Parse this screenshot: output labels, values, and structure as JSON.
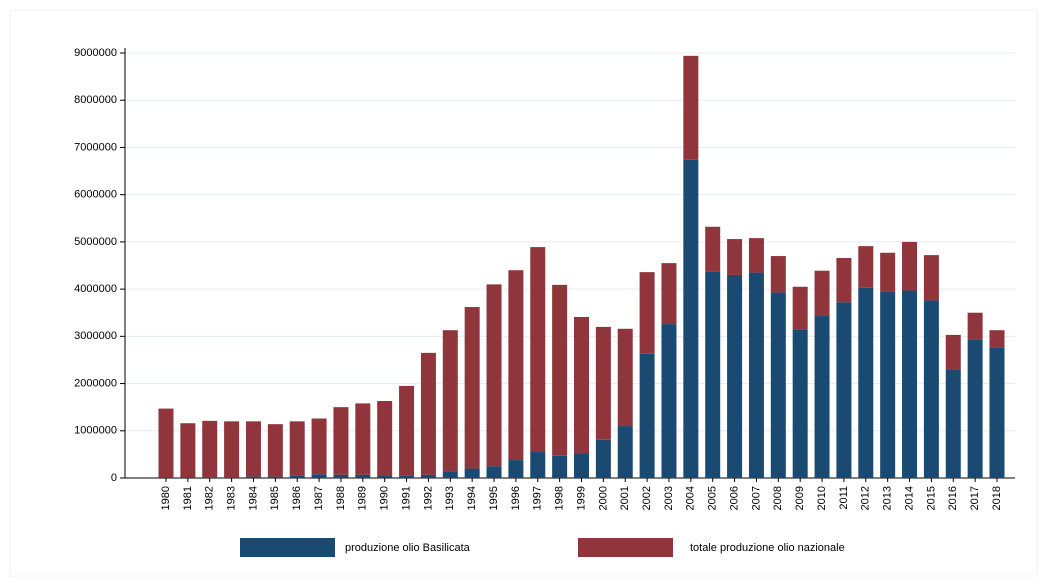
{
  "chart_data": {
    "type": "stacked_bar",
    "categories": [
      "1980",
      "1981",
      "1982",
      "1983",
      "1984",
      "1985",
      "1986",
      "1987",
      "1988",
      "1989",
      "1990",
      "1991",
      "1992",
      "1993",
      "1994",
      "1995",
      "1996",
      "1997",
      "1998",
      "1999",
      "2000",
      "2001",
      "2002",
      "2003",
      "2004",
      "2005",
      "2006",
      "2007",
      "2008",
      "2009",
      "2010",
      "2011",
      "2012",
      "2013",
      "2014",
      "2015",
      "2016",
      "2017",
      "2018"
    ],
    "series": [
      {
        "name": "produzione olio Basilicata",
        "color": "#1a4a72",
        "values": [
          10000,
          10000,
          20000,
          20000,
          30000,
          30000,
          50000,
          80000,
          70000,
          70000,
          60000,
          50000,
          70000,
          140000,
          200000,
          250000,
          380000,
          550000,
          470000,
          520000,
          810000,
          1100000,
          2630000,
          3260000,
          6740000,
          4370000,
          4300000,
          4350000,
          3930000,
          3150000,
          3430000,
          3720000,
          4030000,
          3940000,
          3970000,
          3760000,
          2300000,
          2930000,
          2770000
        ]
      },
      {
        "name": "totale produzione olio nazionale",
        "color": "#90353b",
        "values": [
          1460000,
          1150000,
          1190000,
          1180000,
          1170000,
          1110000,
          1150000,
          1180000,
          1430000,
          1510000,
          1570000,
          1900000,
          2580000,
          2990000,
          3420000,
          3850000,
          4020000,
          4340000,
          3620000,
          2890000,
          2390000,
          2060000,
          1730000,
          1290000,
          2200000,
          950000,
          760000,
          730000,
          770000,
          900000,
          960000,
          940000,
          880000,
          830000,
          1030000,
          960000,
          730000,
          570000,
          360000
        ]
      }
    ],
    "ylim": [
      0,
      9000000
    ],
    "yticks": [
      0,
      1000000,
      2000000,
      3000000,
      4000000,
      5000000,
      6000000,
      7000000,
      8000000,
      9000000
    ],
    "grid": true
  }
}
